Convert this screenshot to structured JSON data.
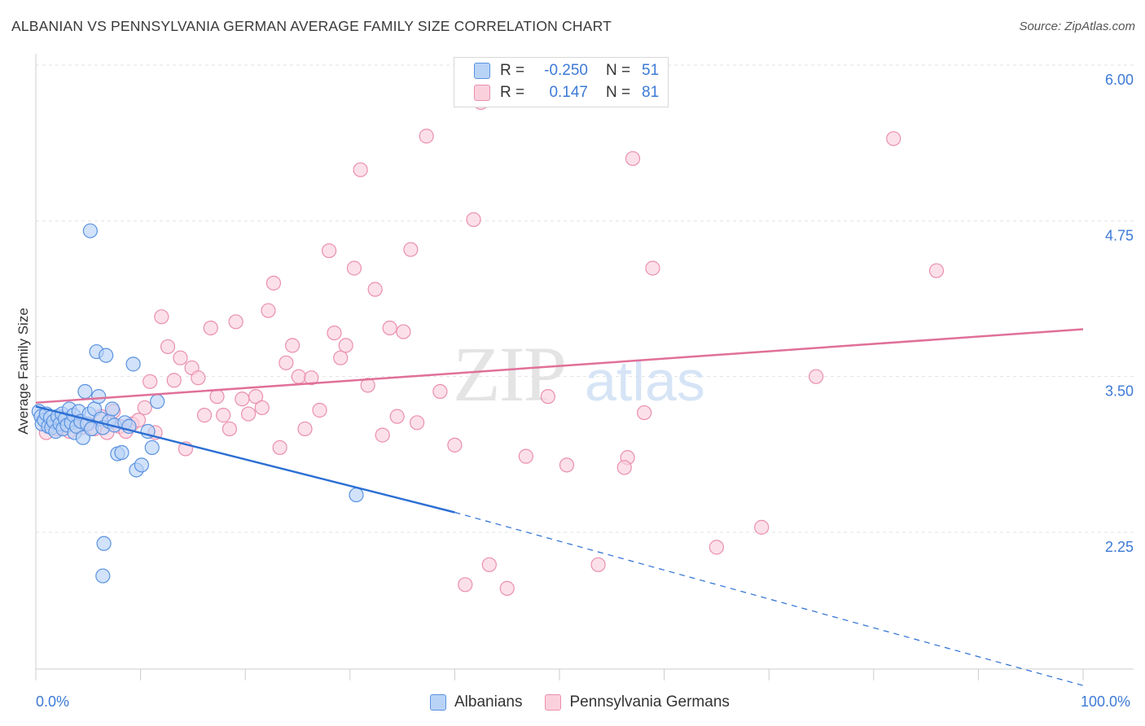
{
  "header": {
    "title": "ALBANIAN VS PENNSYLVANIA GERMAN AVERAGE FAMILY SIZE CORRELATION CHART",
    "source": "Source: ZipAtlas.com"
  },
  "legend_stats": [
    {
      "r_label": "R =",
      "r_value": "-0.250",
      "n_label": "N =",
      "n_value": "51",
      "color": "#4a86e0",
      "fill": "#aecbf5"
    },
    {
      "r_label": "R =",
      "r_value": "0.147",
      "n_label": "N =",
      "n_value": "81",
      "color": "#e87aa0",
      "fill": "#f8c4d4"
    }
  ],
  "bottom_legend": [
    "Albanians",
    "Pennsylvania Germans"
  ],
  "watermark": "ZIPatlas",
  "colors": {
    "albanian_line": "#2c6fd4",
    "pa_german_line": "#e07099",
    "albanian_fill": "#b9d3f7",
    "albanian_stroke": "#5a92e0",
    "pa_german_fill": "#fbd0dd",
    "pa_german_stroke": "#ea8fad",
    "tick_text": "#3d7ad6"
  },
  "chart_data": {
    "type": "scatter",
    "title": "ALBANIAN VS PENNSYLVANIA GERMAN AVERAGE FAMILY SIZE CORRELATION CHART",
    "xlabel": "",
    "ylabel": "Average Family Size",
    "xlim": [
      0,
      100
    ],
    "ylim": [
      1.0,
      6.2
    ],
    "x_tick_labels": [
      "0.0%",
      "100.0%"
    ],
    "y_ticks": [
      2.25,
      3.5,
      4.75,
      6.0
    ],
    "y_tick_labels": [
      "2.25",
      "3.50",
      "4.75",
      "6.00"
    ],
    "grid": true,
    "legend_position": "top-center",
    "series": [
      {
        "name": "Albanians",
        "r": -0.25,
        "n": 51,
        "trend": {
          "x0": 0,
          "y0": 3.26,
          "x1": 40,
          "y1": 2.41,
          "dashed_to_x": 100,
          "dashed_to_y": 1.02
        },
        "points": [
          [
            0.3,
            3.22
          ],
          [
            0.5,
            3.18
          ],
          [
            0.6,
            3.12
          ],
          [
            0.8,
            3.15
          ],
          [
            1.0,
            3.2
          ],
          [
            1.2,
            3.1
          ],
          [
            1.4,
            3.17
          ],
          [
            1.5,
            3.09
          ],
          [
            1.7,
            3.14
          ],
          [
            1.9,
            3.06
          ],
          [
            2.1,
            3.18
          ],
          [
            2.3,
            3.12
          ],
          [
            2.5,
            3.2
          ],
          [
            2.6,
            3.08
          ],
          [
            2.8,
            3.16
          ],
          [
            3.0,
            3.11
          ],
          [
            3.2,
            3.24
          ],
          [
            3.4,
            3.13
          ],
          [
            3.6,
            3.19
          ],
          [
            3.7,
            3.05
          ],
          [
            3.9,
            3.1
          ],
          [
            4.1,
            3.22
          ],
          [
            4.3,
            3.14
          ],
          [
            4.5,
            3.01
          ],
          [
            4.7,
            3.38
          ],
          [
            4.9,
            3.12
          ],
          [
            5.1,
            3.2
          ],
          [
            5.3,
            3.08
          ],
          [
            5.6,
            3.24
          ],
          [
            5.8,
            3.7
          ],
          [
            6.0,
            3.34
          ],
          [
            6.2,
            3.16
          ],
          [
            6.4,
            3.09
          ],
          [
            6.7,
            3.67
          ],
          [
            7.0,
            3.14
          ],
          [
            7.3,
            3.24
          ],
          [
            7.5,
            3.11
          ],
          [
            7.8,
            2.88
          ],
          [
            8.2,
            2.89
          ],
          [
            8.5,
            3.13
          ],
          [
            8.9,
            3.1
          ],
          [
            9.3,
            3.6
          ],
          [
            9.6,
            2.75
          ],
          [
            10.1,
            2.79
          ],
          [
            10.7,
            3.06
          ],
          [
            11.1,
            2.93
          ],
          [
            11.6,
            3.3
          ],
          [
            5.2,
            4.67
          ],
          [
            6.4,
            1.9
          ],
          [
            6.5,
            2.16
          ],
          [
            30.6,
            2.55
          ]
        ]
      },
      {
        "name": "Pennsylvania Germans",
        "r": 0.147,
        "n": 81,
        "trend": {
          "x0": 0,
          "y0": 3.29,
          "x1": 100,
          "y1": 3.88
        },
        "points": [
          [
            1.0,
            3.05
          ],
          [
            1.5,
            3.12
          ],
          [
            2.0,
            3.08
          ],
          [
            2.6,
            3.1
          ],
          [
            3.2,
            3.06
          ],
          [
            3.8,
            3.14
          ],
          [
            4.4,
            3.09
          ],
          [
            5.0,
            3.12
          ],
          [
            5.6,
            3.08
          ],
          [
            6.2,
            3.18
          ],
          [
            6.8,
            3.05
          ],
          [
            7.4,
            3.22
          ],
          [
            8.0,
            3.1
          ],
          [
            8.6,
            3.06
          ],
          [
            9.2,
            3.12
          ],
          [
            9.8,
            3.15
          ],
          [
            10.4,
            3.25
          ],
          [
            10.9,
            3.46
          ],
          [
            11.4,
            3.05
          ],
          [
            12.0,
            3.98
          ],
          [
            12.6,
            3.74
          ],
          [
            13.2,
            3.47
          ],
          [
            13.8,
            3.65
          ],
          [
            14.3,
            2.92
          ],
          [
            14.9,
            3.57
          ],
          [
            15.5,
            3.49
          ],
          [
            16.1,
            3.19
          ],
          [
            16.7,
            3.89
          ],
          [
            17.3,
            3.34
          ],
          [
            17.9,
            3.19
          ],
          [
            18.5,
            3.08
          ],
          [
            19.1,
            3.94
          ],
          [
            19.7,
            3.32
          ],
          [
            20.3,
            3.2
          ],
          [
            21.0,
            3.34
          ],
          [
            21.6,
            3.25
          ],
          [
            22.2,
            4.03
          ],
          [
            22.7,
            4.25
          ],
          [
            23.3,
            2.93
          ],
          [
            23.9,
            3.61
          ],
          [
            24.5,
            3.75
          ],
          [
            25.1,
            3.5
          ],
          [
            25.7,
            3.08
          ],
          [
            26.3,
            3.49
          ],
          [
            27.1,
            3.23
          ],
          [
            28.0,
            4.51
          ],
          [
            28.5,
            3.85
          ],
          [
            29.1,
            3.65
          ],
          [
            29.6,
            3.75
          ],
          [
            30.4,
            4.37
          ],
          [
            31.0,
            5.16
          ],
          [
            31.7,
            3.43
          ],
          [
            32.4,
            4.2
          ],
          [
            33.1,
            3.03
          ],
          [
            33.8,
            3.89
          ],
          [
            34.5,
            3.18
          ],
          [
            35.1,
            3.86
          ],
          [
            35.8,
            4.52
          ],
          [
            36.4,
            3.13
          ],
          [
            37.3,
            5.43
          ],
          [
            38.6,
            3.38
          ],
          [
            40.0,
            2.95
          ],
          [
            41.0,
            1.83
          ],
          [
            41.8,
            4.76
          ],
          [
            42.5,
            5.7
          ],
          [
            43.3,
            1.99
          ],
          [
            45.0,
            1.8
          ],
          [
            46.8,
            2.86
          ],
          [
            48.9,
            3.34
          ],
          [
            50.7,
            2.79
          ],
          [
            53.7,
            1.99
          ],
          [
            56.5,
            2.85
          ],
          [
            56.2,
            2.77
          ],
          [
            57.0,
            5.25
          ],
          [
            58.1,
            3.21
          ],
          [
            58.9,
            4.37
          ],
          [
            65.0,
            2.13
          ],
          [
            69.3,
            2.29
          ],
          [
            74.5,
            3.5
          ],
          [
            81.9,
            5.41
          ],
          [
            86.0,
            4.35
          ]
        ]
      }
    ]
  }
}
